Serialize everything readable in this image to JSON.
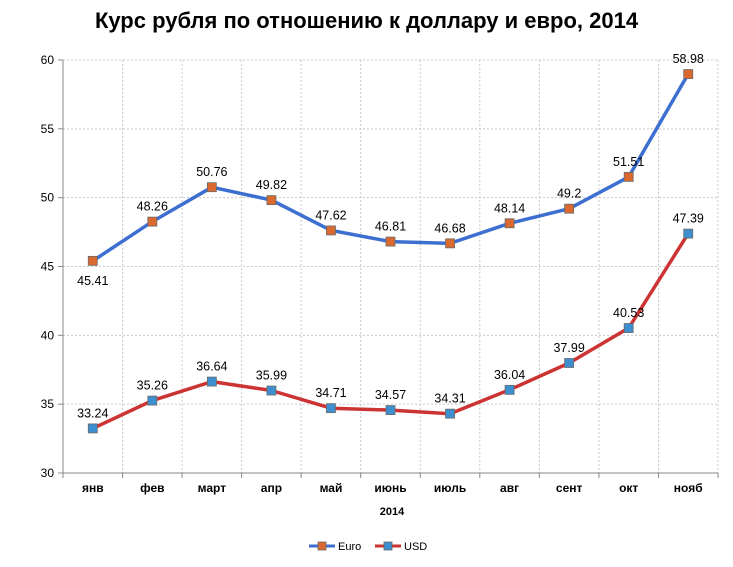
{
  "chart_data": {
    "type": "line",
    "title": "Курс рубля по отношению к доллару и евро, 2014",
    "xlabel": "2014",
    "ylabel": "",
    "categories": [
      "янв",
      "фев",
      "март",
      "апр",
      "май",
      "июнь",
      "июль",
      "авг",
      "сент",
      "окт",
      "нояб"
    ],
    "ylim": [
      30,
      60
    ],
    "yticks": [
      30,
      35,
      40,
      45,
      50,
      55,
      60
    ],
    "grid": true,
    "legend_position": "bottom",
    "series": [
      {
        "name": "Euro",
        "line_color": "#3d6fd0",
        "marker_color": "#d9692f",
        "values": [
          45.41,
          48.26,
          50.76,
          49.82,
          47.62,
          46.81,
          46.68,
          48.14,
          49.2,
          51.51,
          58.98
        ],
        "labels": [
          "45.41",
          "48.26",
          "50.76",
          "49.82",
          "47.62",
          "46.81",
          "46.68",
          "48.14",
          "49.2",
          "51.51",
          "58.98"
        ]
      },
      {
        "name": "USD",
        "line_color": "#cc3333",
        "marker_color": "#3d8fd0",
        "values": [
          33.24,
          35.26,
          36.64,
          35.99,
          34.71,
          34.57,
          34.31,
          36.04,
          37.99,
          40.53,
          47.39
        ],
        "labels": [
          "33.24",
          "35.26",
          "36.64",
          "35.99",
          "34.71",
          "34.57",
          "34.31",
          "36.04",
          "37.99",
          "40.53",
          "47.39"
        ]
      }
    ]
  }
}
